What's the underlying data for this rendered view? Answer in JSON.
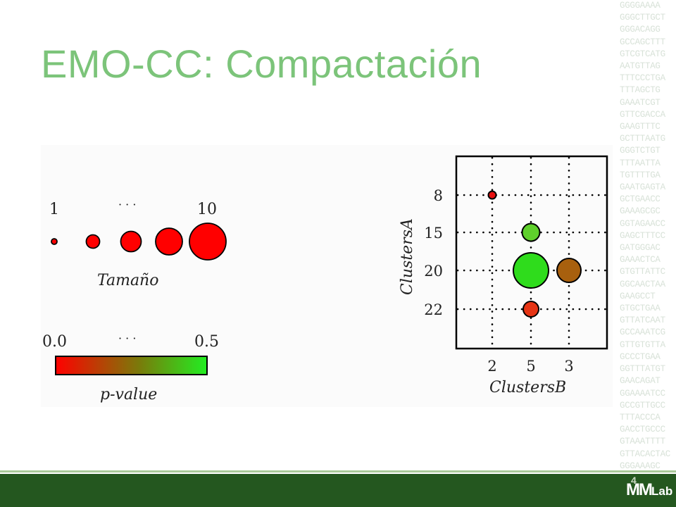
{
  "slide": {
    "title": "EMO-CC: Compactación",
    "background_sequence": [
      "GGGGAAAA",
      "GGGCTTGCT",
      "GGGACAGG",
      "GCCAGCTTT",
      "GTCGTCATG",
      "AATGTTAG",
      "TTTCCCTGA",
      "TTTAGCTG",
      "GAAATCGT",
      "GTTCGACCA",
      "GAAGTTTC",
      "GCTTTAATG",
      "GGGTCTGT",
      "TTTAATTA",
      "TGTTTTGA",
      "GAATGAGTA",
      "GCTGAACC",
      "GAAAGCGC",
      "GGTAGAACC",
      "GAGCTTTCC",
      "GATGGGAC",
      "GAAACTCA",
      "GTGTTATTC",
      "GGCAACTAA",
      "GAAGCCT",
      "GTGCTGAA",
      "GTTATCAAT",
      "GCCAAATCG",
      "GTTGTGTTA",
      "GCCCTGAA",
      "GGTTTATGT",
      "GAACAGAT",
      "GGAAAATCC",
      "GCCGTTGCC",
      "TTTACCCA",
      "GACCTGCCC",
      "GTAAATTTT",
      "GTTACACTAC",
      "GGGAAAGC",
      "GAAAGCGC"
    ],
    "logo": {
      "main": "MM",
      "lab": "Lab",
      "number": "4"
    },
    "figure": {
      "size_legend": {
        "left_label": "1",
        "dots": "· · ·",
        "right_label": "10",
        "sizes": [
          1,
          3,
          5,
          7,
          10
        ],
        "caption": "Tamaño"
      },
      "color_legend": {
        "min_label": "0.0",
        "dots": "· · ·",
        "max_label": "0.5",
        "caption": "p-value",
        "color_low": "#ff0000",
        "color_high": "#22ee22"
      },
      "plot": {
        "y_axis_label": "ClustersA",
        "x_axis_label": "ClustersB",
        "y_ticks": [
          "8",
          "15",
          "20",
          "22"
        ],
        "x_ticks": [
          "2",
          "5",
          "3"
        ],
        "bubbles": [
          {
            "row": 0,
            "col": 0,
            "size": 1,
            "color": "#e81010"
          },
          {
            "row": 1,
            "col": 1,
            "size": 4,
            "color": "#5fd02c"
          },
          {
            "row": 2,
            "col": 1,
            "size": 10,
            "color": "#2fdc1c"
          },
          {
            "row": 2,
            "col": 2,
            "size": 6,
            "color": "#a8600e"
          },
          {
            "row": 3,
            "col": 1,
            "size": 3,
            "color": "#e63414"
          }
        ]
      }
    }
  }
}
